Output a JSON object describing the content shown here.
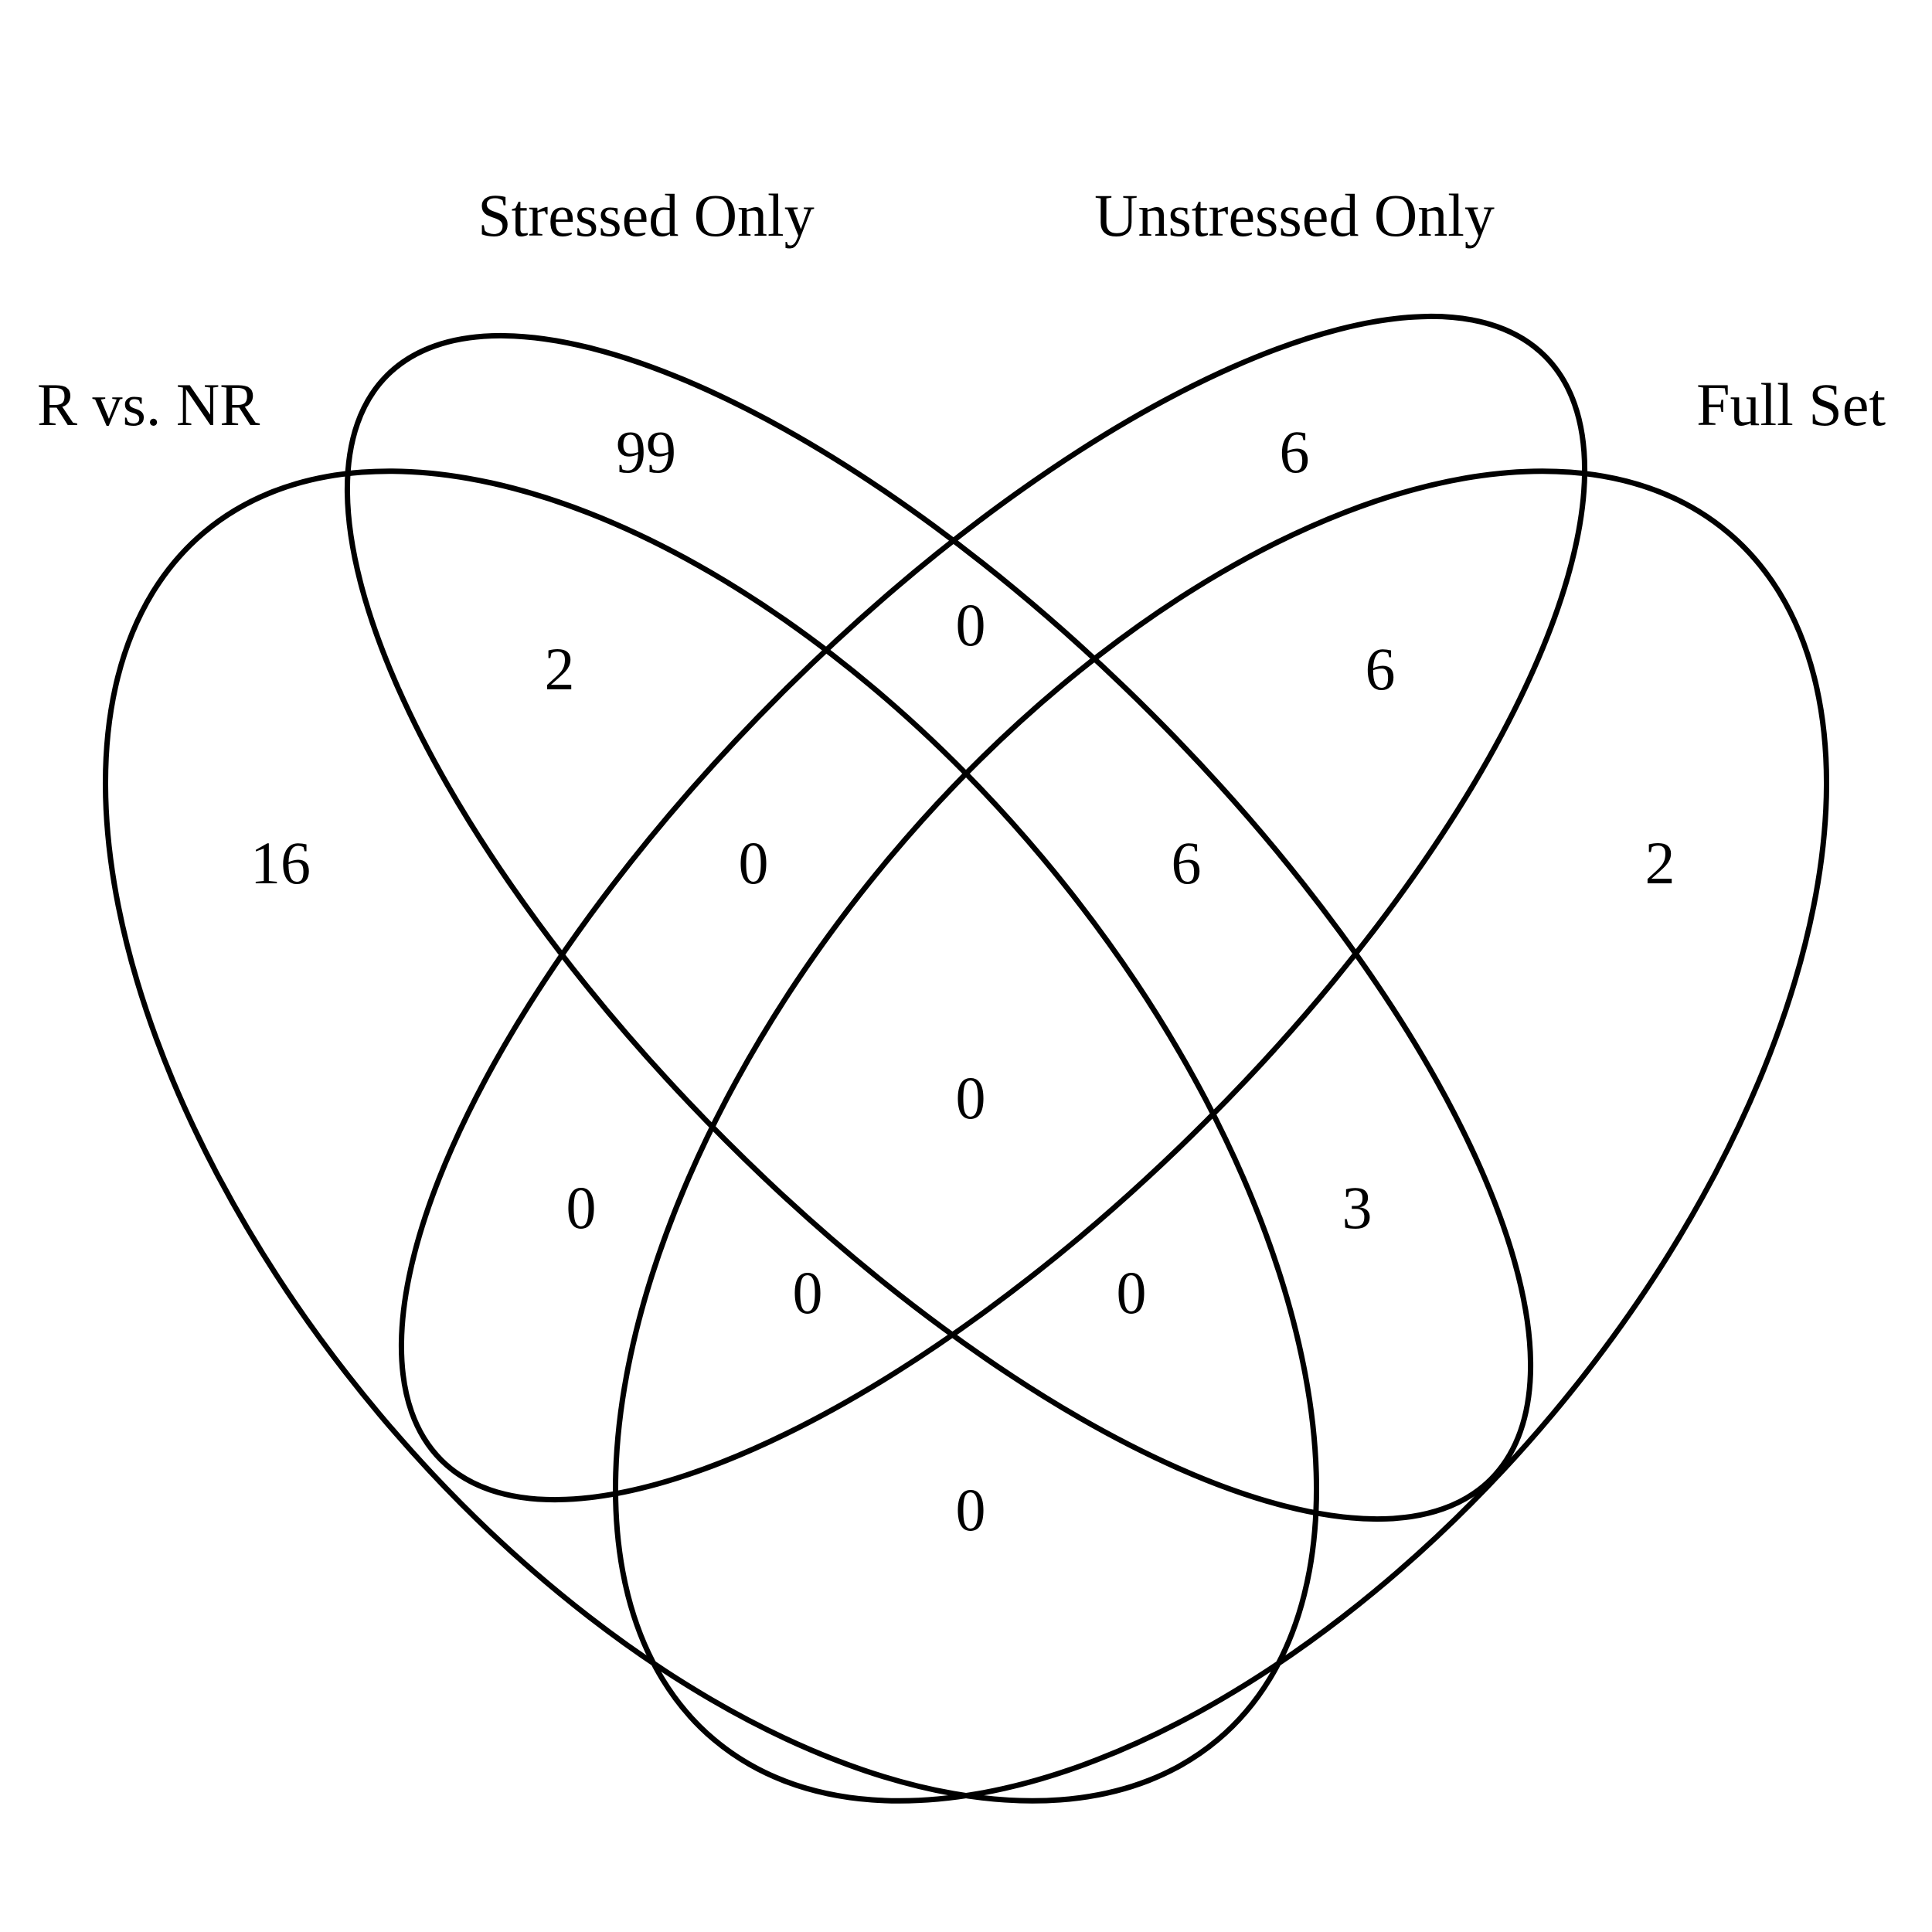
{
  "diagram": {
    "type": "venn-4",
    "sets": [
      {
        "key": "rvnr",
        "label": "R vs. NR"
      },
      {
        "key": "stressed",
        "label": "Stressed Only"
      },
      {
        "key": "unstressed",
        "label": "Unstressed Only"
      },
      {
        "key": "full",
        "label": "Full Set"
      }
    ],
    "regions": {
      "rvnr_only": "16",
      "stressed_only": "99",
      "unstressed_only": "6",
      "full_only": "2",
      "rvnr_stressed": "2",
      "stressed_unstressed": "0",
      "unstressed_full": "6",
      "rvnr_stressed_unstressed": "0",
      "stressed_unstressed_full": "6",
      "all_four": "0",
      "rvnr_unstressed": "0",
      "stressed_full": "3",
      "rvnr_unstressed_full": "0",
      "rvnr_stressed_full": "0",
      "rvnr_full": "0"
    },
    "outline_color": "#000000",
    "background_color": "#ffffff"
  }
}
